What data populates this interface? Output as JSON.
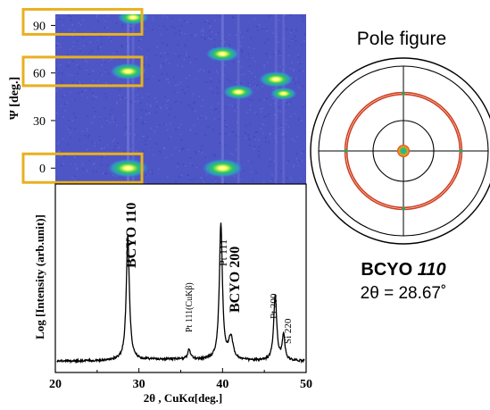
{
  "chart_data": [
    {
      "type": "heatmap",
      "description_label": "2D X-ray diffraction image",
      "ylabel": "Ψ [deg.]",
      "yticks": [
        0,
        30,
        60,
        90
      ],
      "ylim": [
        -10,
        97
      ],
      "xlim": [
        20,
        50
      ],
      "spots": [
        {
          "two_theta": 28.7,
          "psi": 0,
          "intensity": 1.0
        },
        {
          "two_theta": 40.0,
          "psi": 0,
          "intensity": 1.0
        },
        {
          "two_theta": 28.7,
          "psi": 61,
          "intensity": 0.8
        },
        {
          "two_theta": 40.0,
          "psi": 72,
          "intensity": 0.7
        },
        {
          "two_theta": 46.4,
          "psi": 56,
          "intensity": 0.75
        },
        {
          "two_theta": 41.9,
          "psi": 48,
          "intensity": 0.6
        },
        {
          "two_theta": 47.3,
          "psi": 47,
          "intensity": 0.4
        },
        {
          "two_theta": 29.3,
          "psi": 95,
          "intensity": 0.6
        }
      ],
      "highlights": [
        "0",
        "60",
        "90"
      ],
      "colors": {
        "background": "#5058c8",
        "spot_core": "#ffff40",
        "spot_mid": "#30d060",
        "highlight": "#e8b020"
      }
    },
    {
      "type": "line",
      "xlabel": "2θ , CuKα[deg.]",
      "ylabel": "Log [Intensity (arb.unit)]",
      "xlim": [
        20,
        50
      ],
      "xticks": [
        20,
        30,
        40,
        50
      ],
      "baseline": 0.06,
      "peaks": [
        {
          "x": 28.67,
          "height": 0.66,
          "width": 0.22
        },
        {
          "x": 36.0,
          "height": 0.05,
          "width": 0.2
        },
        {
          "x": 39.8,
          "height": 0.72,
          "width": 0.22
        },
        {
          "x": 41.0,
          "height": 0.12,
          "width": 0.3
        },
        {
          "x": 46.3,
          "height": 0.34,
          "width": 0.22
        },
        {
          "x": 47.3,
          "height": 0.14,
          "width": 0.18
        }
      ],
      "annotations": [
        {
          "text": "BCYO 110",
          "x": 28.7
        },
        {
          "text": "Pt 111(CuKβ)",
          "x": 35.8
        },
        {
          "text": "Pt 111",
          "x": 39.8
        },
        {
          "text": "BCYO 200",
          "x": 42.0
        },
        {
          "text": "Pt 200",
          "x": 46.4
        },
        {
          "text": "Si 220",
          "x": 47.6
        }
      ]
    },
    {
      "type": "pole_figure",
      "title": "Pole figure",
      "caption_main": "BCYO",
      "caption_hkl": "110",
      "caption_angle": "2θ = 28.67˚",
      "rings_psi": [
        60,
        62
      ],
      "colors": {
        "ring": "#d04020",
        "center_core": "#30a0c0",
        "center_outer": "#f0a020"
      }
    }
  ]
}
